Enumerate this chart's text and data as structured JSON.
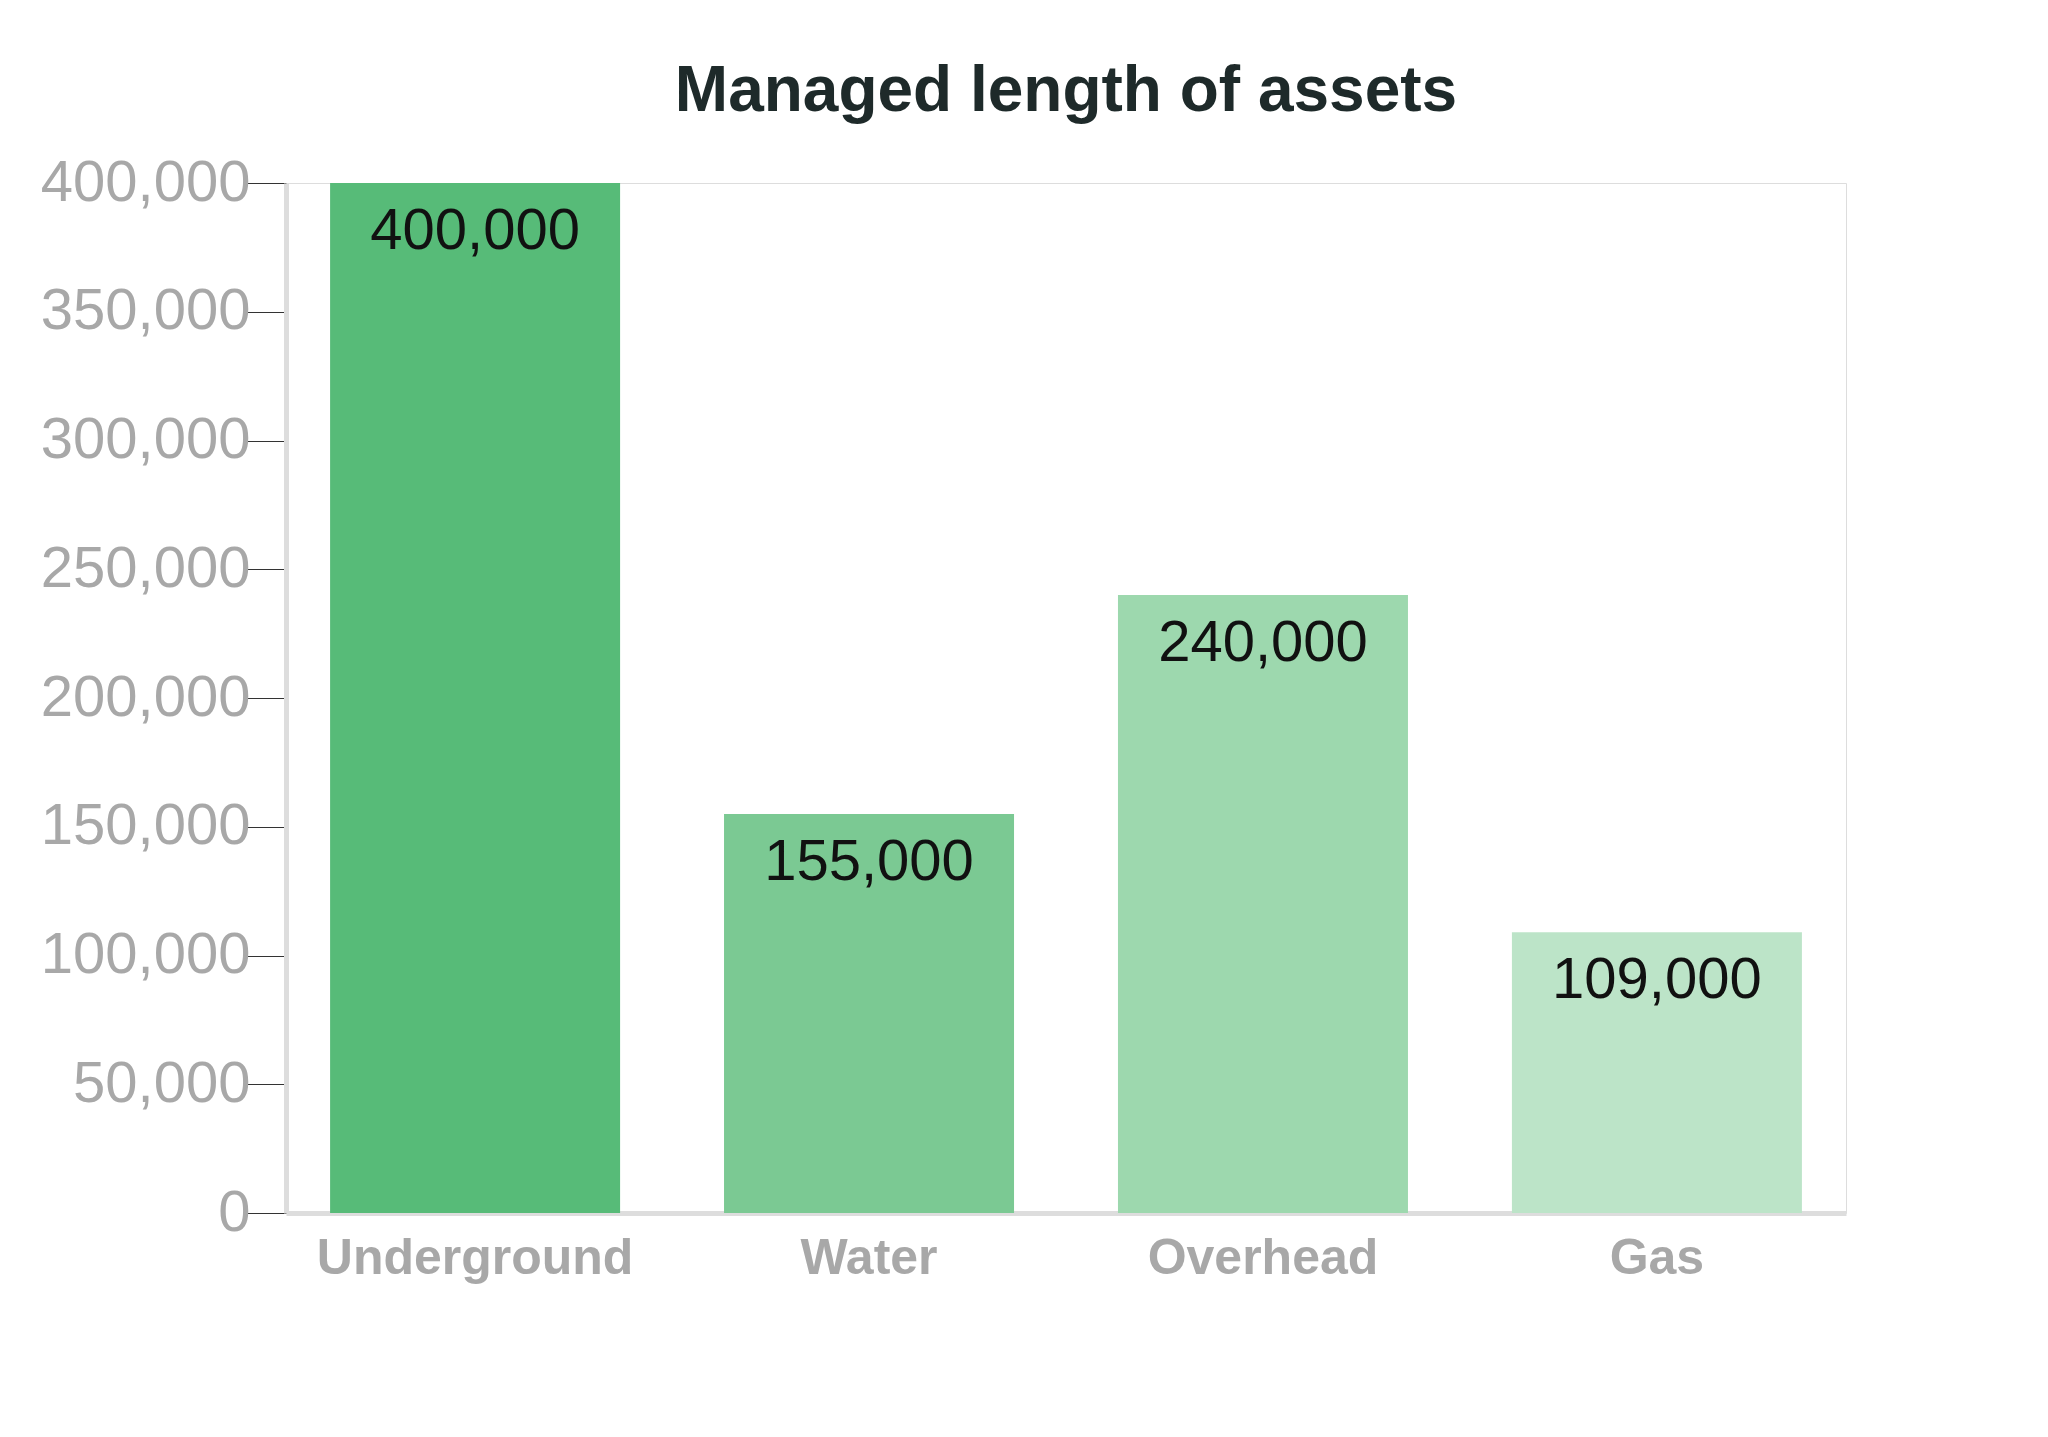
{
  "chart_data": {
    "type": "bar",
    "title": "Managed length of assets",
    "categories": [
      "Underground",
      "Water",
      "Overhead",
      "Gas"
    ],
    "values": [
      400000,
      155000,
      240000,
      109000
    ],
    "value_labels": [
      "400,000",
      "155,000",
      "240,000",
      "109,000"
    ],
    "colors": [
      "#57bb78",
      "#7bc993",
      "#9dd8ae",
      "#bce4c8"
    ],
    "ylim": [
      0,
      400000
    ],
    "yticks": [
      0,
      {
        "value": 50000,
        "label": "50,000"
      },
      {
        "value": 100000,
        "label": "100,000"
      },
      {
        "value": 150000,
        "label": "150,000"
      },
      {
        "value": 200000,
        "label": "200,000"
      },
      {
        "value": 250000,
        "label": "250,000"
      },
      {
        "value": 300000,
        "label": "300,000"
      },
      {
        "value": 350000,
        "label": "350,000"
      },
      {
        "value": 400000,
        "label": "400,000"
      }
    ],
    "grid": false
  }
}
